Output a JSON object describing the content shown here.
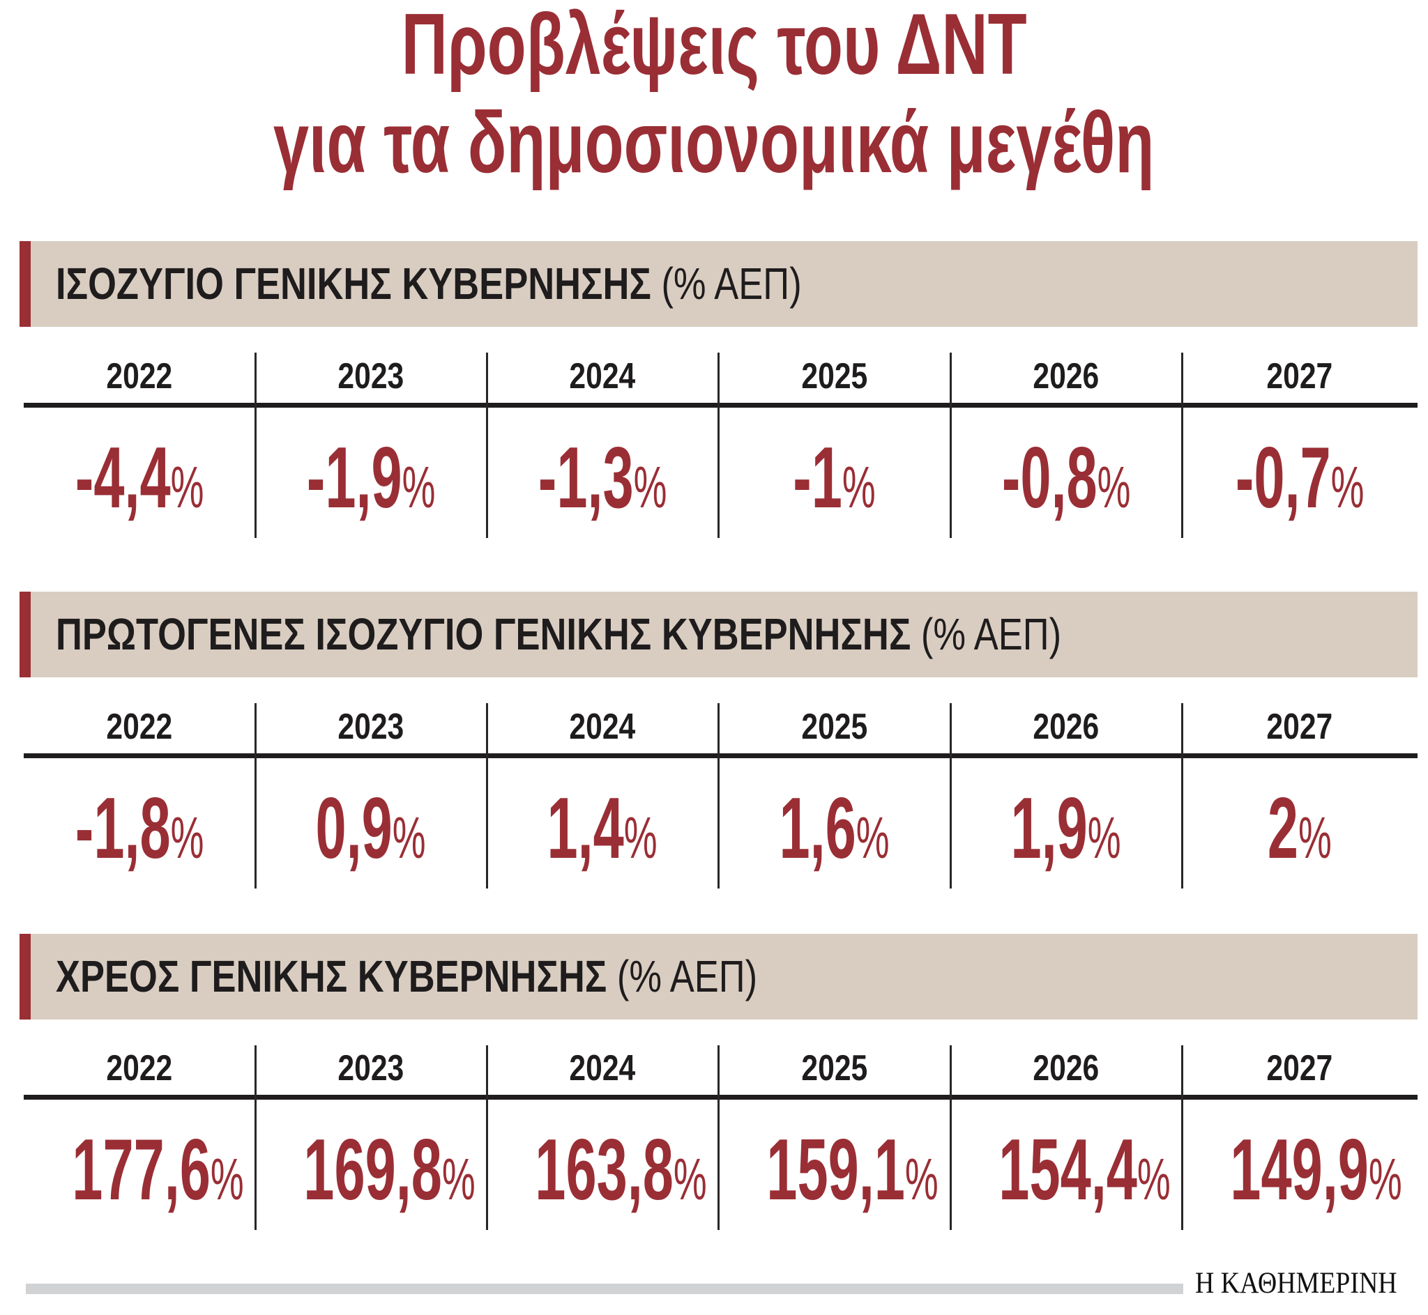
{
  "header": {
    "title_line1": "Προβλέψεις του ΔΝΤ",
    "title_line2": "για τα δημοσιονομικά μεγέθη"
  },
  "colors": {
    "accent_red": "#9a2e35",
    "bar_beige": "#d9cdc1",
    "text_dark": "#1f1c1d",
    "footer_gray": "#d1d2d4"
  },
  "sections": [
    {
      "title": "ΙΣΟΖΥΓΙΟ ΓΕΝΙΚΗΣ ΚΥΒΕΡΝΗΣΗΣ",
      "unit": "(% ΑΕΠ)",
      "years": [
        "2022",
        "2023",
        "2024",
        "2025",
        "2026",
        "2027"
      ],
      "values": [
        "-4,4",
        "-1,9",
        "-1,3",
        "-1",
        "-0,8",
        "-0,7"
      ],
      "pct": "%"
    },
    {
      "title": "ΠΡΩΤΟΓΕΝΕΣ ΙΣΟΖΥΓΙΟ ΓΕΝΙΚΗΣ ΚΥΒΕΡΝΗΣΗΣ",
      "unit": "(% ΑΕΠ)",
      "years": [
        "2022",
        "2023",
        "2024",
        "2025",
        "2026",
        "2027"
      ],
      "values": [
        "-1,8",
        "0,9",
        "1,4",
        "1,6",
        "1,9",
        "2"
      ],
      "pct": "%"
    },
    {
      "title": "ΧΡΕΟΣ ΓΕΝΙΚΗΣ ΚΥΒΕΡΝΗΣΗΣ",
      "unit": "(% ΑΕΠ)",
      "years": [
        "2022",
        "2023",
        "2024",
        "2025",
        "2026",
        "2027"
      ],
      "values": [
        "177,6",
        "169,8",
        "163,8",
        "159,1",
        "154,4",
        "149,9"
      ],
      "pct": "%"
    }
  ],
  "footer": {
    "logo": "Η ΚΑΘΗΜΕΡΙΝΗ"
  },
  "chart_data": {
    "type": "table",
    "title": "Προβλέψεις του ΔΝΤ για τα δημοσιονομικά μεγέθη",
    "categories": [
      "2022",
      "2023",
      "2024",
      "2025",
      "2026",
      "2027"
    ],
    "unit": "% ΑΕΠ",
    "series": [
      {
        "name": "ΙΣΟΖΥΓΙΟ ΓΕΝΙΚΗΣ ΚΥΒΕΡΝΗΣΗΣ",
        "values": [
          -4.4,
          -1.9,
          -1.3,
          -1.0,
          -0.8,
          -0.7
        ]
      },
      {
        "name": "ΠΡΩΤΟΓΕΝΕΣ ΙΣΟΖΥΓΙΟ ΓΕΝΙΚΗΣ ΚΥΒΕΡΝΗΣΗΣ",
        "values": [
          -1.8,
          0.9,
          1.4,
          1.6,
          1.9,
          2.0
        ]
      },
      {
        "name": "ΧΡΕΟΣ ΓΕΝΙΚΗΣ ΚΥΒΕΡΝΗΣΗΣ",
        "values": [
          177.6,
          169.8,
          163.8,
          159.1,
          154.4,
          149.9
        ]
      }
    ],
    "source": "Η ΚΑΘΗΜΕΡΙΝΗ"
  }
}
